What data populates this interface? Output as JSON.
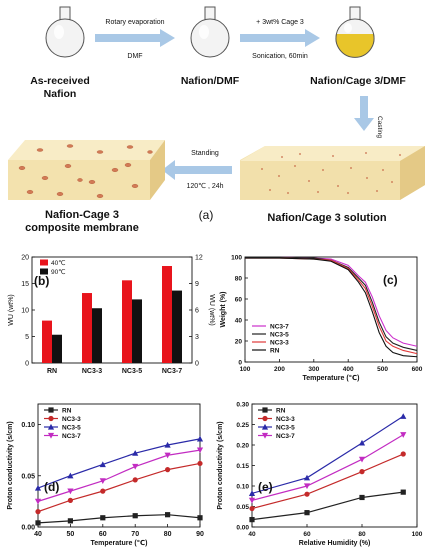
{
  "schematic": {
    "flask1_label": "As-received\nNafion",
    "step1_top": "Rotary evaporation",
    "step1_bottom": "DMF",
    "flask2_label": "Nafion/DMF",
    "step2_top": "+ 3wt% Cage 3",
    "step2_bottom": "Sonication, 60min",
    "flask3_label": "Nafion/Cage 3/DMF",
    "step3": "Casting",
    "step4_top": "Standing",
    "step4_bottom": "120℃ , 24h",
    "membrane_label": "Nafion-Cage 3\ncomposite membrane",
    "solution_label": "Nafion/Cage 3 solution",
    "panel_label": "(a)",
    "colors": {
      "arrow": "#a9c8e6",
      "solution": "#e8c52a",
      "block_top": "#f6e6b8",
      "block_side": "#e6cd88"
    }
  },
  "chart_data": [
    {
      "id": "b",
      "type": "bar",
      "panel_label": "(b)",
      "categories": [
        "RN",
        "NC3-3",
        "NC3-5",
        "NC3-7"
      ],
      "series": [
        {
          "name": "40℃",
          "axis": "left",
          "color": "#e8141c",
          "values": [
            8.0,
            13.2,
            15.6,
            18.3
          ]
        },
        {
          "name": "90℃",
          "axis": "right",
          "color": "#111111",
          "values": [
            3.2,
            6.2,
            7.2,
            8.2
          ]
        }
      ],
      "ylabel_left": "WU (wt%)",
      "ylabel_right": "WU (wt%)",
      "ylim_left": [
        0,
        20
      ],
      "yticks_left": [
        0,
        5,
        10,
        15,
        20
      ],
      "ylim_right": [
        0,
        12
      ],
      "yticks_right": [
        0,
        3,
        6,
        9,
        12
      ],
      "legend": "top-left"
    },
    {
      "id": "c",
      "type": "line",
      "panel_label": "(c)",
      "xlabel": "Temperature (℃)",
      "ylabel": "Weight (%)",
      "xlim": [
        100,
        600
      ],
      "xticks": [
        100,
        200,
        300,
        400,
        500,
        600
      ],
      "ylim": [
        0,
        100
      ],
      "yticks": [
        0,
        20,
        40,
        60,
        80,
        100
      ],
      "legend": "bottom-left",
      "series": [
        {
          "name": "NC3-7",
          "color": "#cc2fcc",
          "x": [
            100,
            200,
            300,
            350,
            400,
            430,
            450,
            470,
            490,
            510,
            530,
            560,
            600
          ],
          "y": [
            100,
            100,
            99,
            98,
            92,
            82,
            76,
            62,
            44,
            30,
            23,
            18,
            15
          ]
        },
        {
          "name": "NC3-5",
          "color": "#222222",
          "x": [
            100,
            200,
            300,
            350,
            400,
            430,
            450,
            470,
            490,
            510,
            530,
            560,
            600
          ],
          "y": [
            100,
            100,
            99,
            97,
            90,
            80,
            73,
            57,
            38,
            24,
            18,
            14,
            11
          ]
        },
        {
          "name": "NC3-3",
          "color": "#e03a3a",
          "x": [
            100,
            200,
            300,
            350,
            400,
            430,
            450,
            470,
            490,
            510,
            530,
            560,
            600
          ],
          "y": [
            99,
            99,
            98,
            97,
            89,
            78,
            70,
            53,
            34,
            20,
            15,
            11,
            8
          ]
        },
        {
          "name": "RN",
          "color": "#111111",
          "x": [
            100,
            200,
            300,
            350,
            400,
            430,
            450,
            470,
            490,
            510,
            530,
            560,
            600
          ],
          "y": [
            99,
            99,
            98,
            96,
            88,
            76,
            66,
            48,
            28,
            15,
            9,
            6,
            5
          ]
        }
      ]
    },
    {
      "id": "d",
      "type": "line",
      "panel_label": "(d)",
      "xlabel": "Temperature (℃)",
      "ylabel": "Proton conductivity (s/cm)",
      "xlim": [
        40,
        90
      ],
      "xticks": [
        40,
        50,
        60,
        70,
        80,
        90
      ],
      "ylim": [
        0,
        0.12
      ],
      "yticks": [
        0.0,
        0.05,
        0.1
      ],
      "ytick_labels": [
        "0.00",
        "0.05",
        "0.10"
      ],
      "legend": "top-left",
      "series": [
        {
          "name": "RN",
          "color": "#222222",
          "marker": "square",
          "x": [
            40,
            50,
            60,
            70,
            80,
            90
          ],
          "y": [
            0.004,
            0.006,
            0.009,
            0.011,
            0.012,
            0.009
          ]
        },
        {
          "name": "NC3-3",
          "color": "#c42a2a",
          "marker": "circle",
          "x": [
            40,
            50,
            60,
            70,
            80,
            90
          ],
          "y": [
            0.015,
            0.026,
            0.035,
            0.046,
            0.056,
            0.062
          ]
        },
        {
          "name": "NC3-5",
          "color": "#2a2aa8",
          "marker": "triangle",
          "x": [
            40,
            50,
            60,
            70,
            80,
            90
          ],
          "y": [
            0.038,
            0.05,
            0.061,
            0.072,
            0.08,
            0.086
          ]
        },
        {
          "name": "NC3-7",
          "color": "#c22cc2",
          "marker": "triangle-down",
          "x": [
            40,
            50,
            60,
            70,
            80,
            90
          ],
          "y": [
            0.025,
            0.035,
            0.045,
            0.059,
            0.07,
            0.075
          ]
        }
      ]
    },
    {
      "id": "e",
      "type": "line",
      "panel_label": "(e)",
      "xlabel": "Relative Humidity (%)",
      "ylabel": "Proton conductivity (s/cm)",
      "xlim": [
        40,
        100
      ],
      "xticks": [
        40,
        60,
        80,
        100
      ],
      "ylim": [
        0,
        0.3
      ],
      "yticks": [
        0.0,
        0.05,
        0.1,
        0.15,
        0.2,
        0.25,
        0.3
      ],
      "ytick_labels": [
        "0.00",
        "0.05",
        "0.10",
        "0.15",
        "0.20",
        "0.25",
        "0.30"
      ],
      "legend": "top-left",
      "series": [
        {
          "name": "RN",
          "color": "#222222",
          "marker": "square",
          "x": [
            40,
            60,
            80,
            95
          ],
          "y": [
            0.018,
            0.035,
            0.072,
            0.085
          ]
        },
        {
          "name": "NC3-3",
          "color": "#c42a2a",
          "marker": "circle",
          "x": [
            40,
            60,
            80,
            95
          ],
          "y": [
            0.045,
            0.08,
            0.135,
            0.178
          ]
        },
        {
          "name": "NC3-5",
          "color": "#2a2aa8",
          "marker": "triangle",
          "x": [
            40,
            60,
            80,
            95
          ],
          "y": [
            0.082,
            0.12,
            0.205,
            0.27
          ]
        },
        {
          "name": "NC3-7",
          "color": "#c22cc2",
          "marker": "triangle-down",
          "x": [
            40,
            60,
            80,
            95
          ],
          "y": [
            0.065,
            0.1,
            0.165,
            0.225
          ]
        }
      ]
    }
  ]
}
